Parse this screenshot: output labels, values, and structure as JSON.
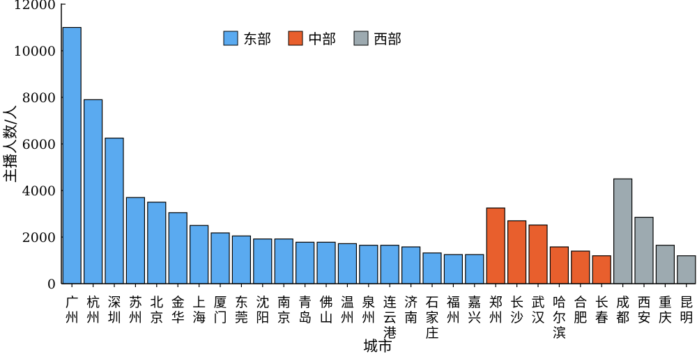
{
  "chart_data": {
    "type": "bar",
    "xlabel": "城市",
    "ylabel": "主播人数/人",
    "ylim": [
      0,
      12000
    ],
    "yticks": [
      0,
      2000,
      4000,
      6000,
      8000,
      10000,
      12000
    ],
    "legend_position": "top-center",
    "grid": false,
    "groups": [
      {
        "name": "东部",
        "color": "#5aaaf0"
      },
      {
        "name": "中部",
        "color": "#e85f2d"
      },
      {
        "name": "西部",
        "color": "#9daab0"
      }
    ],
    "categories": [
      "广州",
      "杭州",
      "深圳",
      "苏州",
      "北京",
      "金华",
      "上海",
      "厦门",
      "东莞",
      "沈阳",
      "南京",
      "青岛",
      "佛山",
      "温州",
      "泉州",
      "连云港",
      "济南",
      "石家庄",
      "福州",
      "嘉兴",
      "郑州",
      "长沙",
      "武汉",
      "哈尔滨",
      "合肥",
      "长春",
      "成都",
      "西安",
      "重庆",
      "昆明"
    ],
    "values": [
      11000,
      7900,
      6250,
      3700,
      3500,
      3050,
      2500,
      2180,
      2050,
      1920,
      1920,
      1780,
      1780,
      1720,
      1650,
      1650,
      1580,
      1320,
      1250,
      1250,
      3250,
      2700,
      2520,
      1580,
      1400,
      1200,
      4500,
      2850,
      1650,
      1200
    ],
    "group_index": [
      0,
      0,
      0,
      0,
      0,
      0,
      0,
      0,
      0,
      0,
      0,
      0,
      0,
      0,
      0,
      0,
      0,
      0,
      0,
      0,
      1,
      1,
      1,
      1,
      1,
      1,
      2,
      2,
      2,
      2
    ]
  }
}
